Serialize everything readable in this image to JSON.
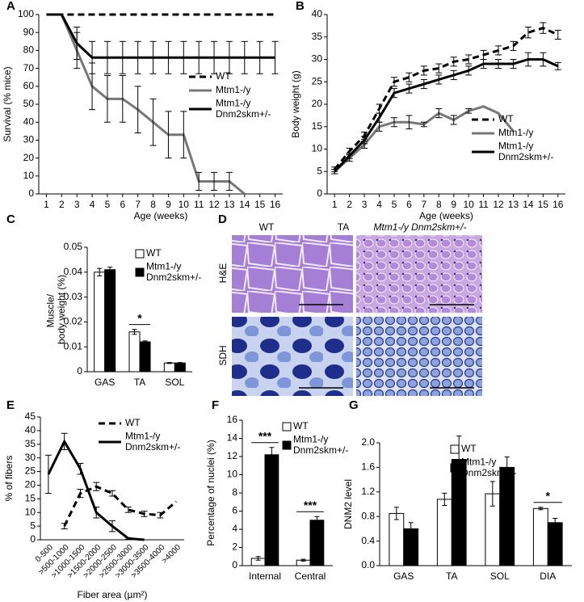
{
  "chart_data": [
    {
      "panel": "A",
      "type": "line",
      "ylabel": "Survival (% mice)",
      "xlabel": "Age (weeks)",
      "x": [
        1,
        2,
        3,
        4,
        5,
        6,
        7,
        8,
        9,
        10,
        11,
        12,
        13,
        14,
        15,
        16
      ],
      "xticks": [
        1,
        2,
        3,
        4,
        5,
        6,
        7,
        8,
        9,
        10,
        11,
        12,
        13,
        14,
        15,
        16
      ],
      "xlim": [
        0.5,
        16.5
      ],
      "ylim": [
        0,
        100
      ],
      "yticks": [
        0,
        10,
        20,
        30,
        40,
        50,
        60,
        70,
        80,
        90,
        100
      ],
      "legend": "center right",
      "series": [
        {
          "name": "WT",
          "color": "#000000",
          "dashed": true,
          "values": [
            100,
            100,
            100,
            100,
            100,
            100,
            100,
            100,
            100,
            100,
            100,
            100,
            100,
            100,
            100,
            100
          ]
        },
        {
          "name": "Mtm1-/y",
          "color": "#777777",
          "values": [
            100,
            100,
            80,
            60,
            53,
            53,
            47,
            40,
            33,
            33,
            7,
            7,
            7,
            0,
            null,
            null
          ],
          "errors": [
            null,
            null,
            10,
            13,
            13,
            13,
            13,
            13,
            13,
            13,
            5,
            5,
            5,
            null,
            null,
            null
          ]
        },
        {
          "name": "Mtm1-/y Dnm2skm+/-",
          "color": "#000000",
          "values": [
            100,
            100,
            84,
            76,
            76,
            76,
            76,
            76,
            76,
            76,
            76,
            76,
            76,
            76,
            76,
            76
          ],
          "errors": [
            null,
            null,
            9,
            9,
            9,
            9,
            9,
            9,
            9,
            9,
            9,
            9,
            9,
            9,
            9,
            9
          ]
        }
      ]
    },
    {
      "panel": "B",
      "type": "line",
      "ylabel": "Body weight (g)",
      "xlabel": "Age (weeks)",
      "x": [
        1,
        2,
        3,
        4,
        5,
        6,
        7,
        8,
        9,
        10,
        11,
        12,
        13,
        14,
        15,
        16
      ],
      "xticks": [
        1,
        2,
        3,
        4,
        5,
        6,
        7,
        8,
        9,
        10,
        11,
        12,
        13,
        14,
        15,
        16
      ],
      "xlim": [
        0.5,
        16.5
      ],
      "ylim": [
        0,
        40
      ],
      "yticks": [
        0,
        5,
        10,
        15,
        20,
        25,
        30,
        35,
        40
      ],
      "legend": "lower right",
      "series": [
        {
          "name": "WT",
          "color": "#000000",
          "dashed": true,
          "values": [
            5.5,
            9.5,
            13,
            19,
            25,
            26,
            27.5,
            28,
            29.5,
            30,
            31,
            32,
            33,
            36,
            37,
            35.5
          ],
          "errors": [
            0.5,
            0.7,
            0.8,
            1,
            1,
            1,
            1,
            1,
            1,
            1,
            1,
            1,
            1,
            1.2,
            1.2,
            1
          ]
        },
        {
          "name": "Mtm1-/y",
          "color": "#777777",
          "values": [
            5,
            8,
            11,
            15,
            16,
            16,
            15.5,
            18,
            16.5,
            18.5,
            19.5,
            18,
            14,
            null,
            null,
            null
          ],
          "errors": [
            0.5,
            0.7,
            0.8,
            1,
            1,
            1.5,
            0.5,
            1,
            1,
            0.5,
            null,
            null,
            null,
            null,
            null,
            null
          ]
        },
        {
          "name": "Mtm1-/y Dnm2skm+/-",
          "color": "#000000",
          "values": [
            5,
            8.5,
            12,
            17,
            22.5,
            23.5,
            24.5,
            25.5,
            26.5,
            27.5,
            29,
            29,
            29,
            30,
            30,
            28.5
          ],
          "errors": [
            0.5,
            0.6,
            0.8,
            1,
            1,
            1,
            1,
            1,
            1,
            1,
            1,
            1,
            1,
            1.5,
            1.5,
            0.8
          ]
        }
      ]
    },
    {
      "panel": "C",
      "type": "bar",
      "ylabel": "Muscle/ body weight (%)",
      "categories": [
        "GAS",
        "TA",
        "SOL"
      ],
      "ylim": [
        0,
        0.05
      ],
      "yticks": [
        0,
        0.01,
        0.02,
        0.03,
        0.04,
        0.05
      ],
      "legend": "upper right",
      "series": [
        {
          "name": "WT",
          "color": "#ffffff",
          "values": [
            0.04,
            0.016,
            0.0035
          ],
          "errors": [
            0.0015,
            0.001,
            0.0002
          ]
        },
        {
          "name": "Mtm1-/y Dnm2skm+/-",
          "color": "#000000",
          "values": [
            0.041,
            0.012,
            0.0035
          ],
          "errors": [
            0.001,
            0.0004,
            0.0002
          ]
        }
      ],
      "annotations": [
        {
          "text": "*",
          "category": "TA"
        }
      ]
    },
    {
      "panel": "E",
      "type": "line",
      "ylabel": "% of fibers",
      "xlabel": "Fiber area (µm²)",
      "categories": [
        "0-500",
        ">500-1000",
        ">1000-1500",
        ">1500-2000",
        ">2000-2500",
        ">2500-3000",
        ">3000-3500",
        ">3500-4000",
        ">4000"
      ],
      "ylim": [
        0,
        45
      ],
      "yticks": [
        0,
        5,
        10,
        15,
        20,
        25,
        30,
        35,
        40,
        45
      ],
      "legend": "upper right",
      "series": [
        {
          "name": "WT",
          "color": "#000000",
          "dashed": true,
          "values": [
            null,
            5,
            17,
            19.5,
            17,
            11,
            9.5,
            9,
            14
          ],
          "errors": [
            null,
            1,
            1.5,
            1.5,
            1,
            1,
            1,
            1,
            null
          ]
        },
        {
          "name": "Mtm1-/y Dnm2skm+/-",
          "color": "#000000",
          "values": [
            24,
            36,
            26,
            10,
            5,
            0.5,
            0,
            null,
            null
          ],
          "errors": [
            7,
            3,
            2,
            2,
            2,
            0.3,
            null,
            null,
            null
          ]
        }
      ]
    },
    {
      "panel": "F",
      "type": "bar",
      "ylabel": "Percentage of nuclei (%)",
      "categories": [
        "Internal",
        "Central"
      ],
      "ylim": [
        0,
        16
      ],
      "yticks": [
        0,
        2,
        4,
        6,
        8,
        10,
        12,
        14,
        16
      ],
      "legend": "upper right",
      "series": [
        {
          "name": "WT",
          "color": "#ffffff",
          "values": [
            0.8,
            0.6
          ],
          "errors": [
            0.2,
            0.1
          ]
        },
        {
          "name": "Mtm1-/y Dnm2skm+/-",
          "color": "#000000",
          "values": [
            12.2,
            5
          ],
          "errors": [
            0.8,
            0.4
          ]
        }
      ],
      "annotations": [
        {
          "text": "***",
          "category": "Internal"
        },
        {
          "text": "***",
          "category": "Central"
        }
      ]
    },
    {
      "panel": "G",
      "type": "bar",
      "ylabel": "DNM2 level",
      "categories": [
        "GAS",
        "TA",
        "SOL",
        "DIA"
      ],
      "ylim": [
        0,
        2
      ],
      "yticks": [
        {
          "value": 0,
          "label": "0.0"
        },
        0.4,
        0.8,
        1.2,
        1.6,
        {
          "value": 2,
          "label": "2.0"
        }
      ],
      "legend": "upper right",
      "series": [
        {
          "name": "WT",
          "color": "#ffffff",
          "values": [
            0.85,
            1.08,
            1.17,
            0.93
          ],
          "errors": [
            0.1,
            0.1,
            0.2,
            0.02
          ]
        },
        {
          "name": "Mtm1-/y Dnm2skm+/-",
          "color": "#000000",
          "values": [
            0.6,
            1.73,
            1.6,
            0.7
          ],
          "errors": [
            0.1,
            0.38,
            0.17,
            0.07
          ]
        }
      ],
      "annotations": [
        {
          "text": "*",
          "category": "DIA"
        }
      ]
    }
  ],
  "panel_d": {
    "panel": "D",
    "title": "TA",
    "columns": [
      "WT",
      "Mtm1-/y Dnm2skm+/-"
    ],
    "rows": [
      "H&E",
      "SDH"
    ]
  }
}
